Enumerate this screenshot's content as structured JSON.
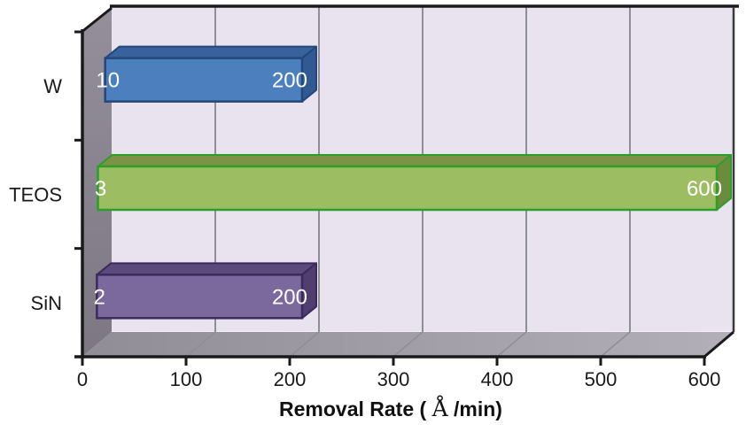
{
  "chart_data": {
    "type": "bar",
    "subtype": "3d-horizontal-floating-bars",
    "title": "",
    "categories": [
      "W",
      "TEOS",
      "SiN"
    ],
    "series": [
      {
        "name": "bar_start",
        "values": [
          10,
          3,
          2
        ]
      },
      {
        "name": "bar_end",
        "values": [
          200,
          600,
          200
        ]
      }
    ],
    "bar_start_labels": [
      "10",
      "3",
      "2"
    ],
    "bar_end_labels": [
      "200",
      "600",
      "200"
    ],
    "xlabel": "Removal Rate ( Å /min)",
    "xlim": [
      0,
      600
    ],
    "xticks": [
      0,
      100,
      200,
      300,
      400,
      500,
      600
    ],
    "grid": true,
    "legend_position": "none"
  },
  "colors": {
    "background": "#ffffff",
    "back_wall": "#e8e3ee",
    "side_wall_top": "#948f9a",
    "side_wall_bottom": "#7c7783",
    "floor_left": "#918d97",
    "floor_right": "#b2afb8",
    "gridline": "#8e8e96",
    "axis": "#1a1a1a",
    "bar_label_text": "#ffffff",
    "series": [
      {
        "name": "W",
        "front": "#4b7fbe",
        "top": "#38629c",
        "side": "#315a92",
        "border": "#24477a"
      },
      {
        "name": "TEOS",
        "front": "#9dbd62",
        "top": "#7d9147",
        "side": "#6d8b3d",
        "border": "#2aa02a"
      },
      {
        "name": "SiN",
        "front": "#7b689d",
        "top": "#5c4a7d",
        "side": "#503e6f",
        "border": "#3a2b5f"
      }
    ]
  }
}
